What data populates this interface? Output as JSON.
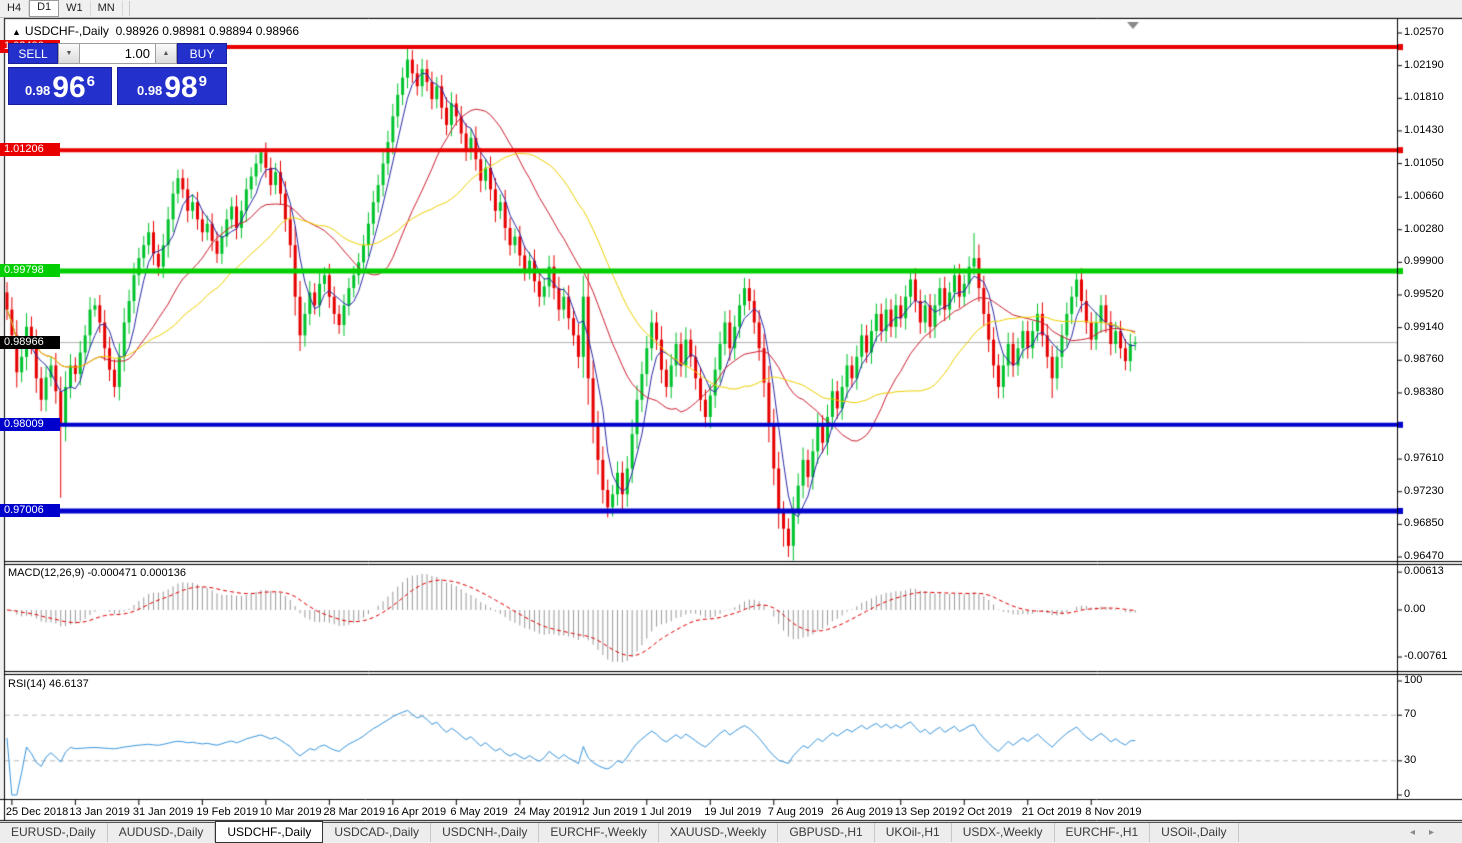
{
  "toolbar": {
    "timeframes": [
      {
        "label": "H4",
        "active": false
      },
      {
        "label": "D1",
        "active": true
      },
      {
        "label": "W1",
        "active": false
      },
      {
        "label": "MN",
        "active": false
      }
    ]
  },
  "header": {
    "collapse_arrow": "▲",
    "symbol_title": "USDCHF-,Daily",
    "ohlc_text": "0.98926 0.98981 0.98894 0.98966"
  },
  "trade_panel": {
    "sell_label": "SELL",
    "buy_label": "BUY",
    "volume": "1.00",
    "spin_down_icon": "▼",
    "spin_up_icon": "▲",
    "sell_price": {
      "prefix": "0.98",
      "big": "96",
      "sup": "6"
    },
    "buy_price": {
      "prefix": "0.98",
      "big": "98",
      "sup": "9"
    },
    "panel_color": "#2330cc"
  },
  "tabs": {
    "items": [
      "EURUSD-,Daily",
      "AUDUSD-,Daily",
      "USDCHF-,Daily",
      "USDCAD-,Daily",
      "USDCNH-,Daily",
      "EURCHF-,Weekly",
      "XAUUSD-,Weekly",
      "GBPUSD-,H1",
      "UKOil-,H1",
      "USDX-,Weekly",
      "EURCHF-,H1",
      "USOil-,Daily"
    ],
    "active_index": 2,
    "scroll_left_icon": "◂",
    "scroll_right_icon": "▸"
  },
  "chart_data": {
    "type": "candlestick",
    "symbol": "USDCHF",
    "timeframe": "Daily",
    "title_ohlc": {
      "open": "0.98926",
      "high": "0.98981",
      "low": "0.98894",
      "close": "0.98966"
    },
    "price_axis_ticks": [
      "1.02570",
      "1.02190",
      "1.01810",
      "1.01430",
      "1.01050",
      "1.00660",
      "1.00280",
      "0.99900",
      "0.99520",
      "0.99140",
      "0.98760",
      "0.98380",
      "0.97610",
      "0.97230",
      "0.96850",
      "0.96470"
    ],
    "levels": [
      {
        "price": 1.02406,
        "label": "1.02406",
        "color": "#e80000",
        "width": 4
      },
      {
        "price": 1.01206,
        "label": "1.01206",
        "color": "#e80000",
        "width": 4
      },
      {
        "price": 0.99798,
        "label": "0.99798",
        "color": "#00ce00",
        "width": 5
      },
      {
        "price": 0.98009,
        "label": "0.98009",
        "color": "#0000cd",
        "width": 4
      },
      {
        "price": 0.97006,
        "label": "0.97006",
        "color": "#0000cd",
        "width": 5
      }
    ],
    "current_price": {
      "value": 0.98966,
      "label": "0.98966",
      "line_color": "#b4b4b4",
      "box_color": "#000000"
    },
    "candle_colors": {
      "up": "#00c32c",
      "down": "#e60000"
    },
    "ma_lines": [
      {
        "period": 5,
        "color": "#2a2aa6"
      },
      {
        "period": 20,
        "color": "#cc2031"
      },
      {
        "period": 34,
        "color": "#efd002"
      }
    ],
    "dates": [
      "25 Dec 2018",
      "13 Jan 2019",
      "31 Jan 2019",
      "19 Feb 2019",
      "10 Mar 2019",
      "28 Mar 2019",
      "16 Apr 2019",
      "6 May 2019",
      "24 May 2019",
      "12 Jun 2019",
      "1 Jul 2019",
      "19 Jul 2019",
      "7 Aug 2019",
      "26 Aug 2019",
      "13 Sep 2019",
      "2 Oct 2019",
      "21 Oct 2019",
      "8 Nov 2019"
    ],
    "closes": [
      0.9935,
      0.9905,
      0.9862,
      0.988,
      0.9915,
      0.9895,
      0.9855,
      0.983,
      0.9856,
      0.987,
      0.984,
      0.98,
      0.9845,
      0.987,
      0.986,
      0.9885,
      0.9905,
      0.9935,
      0.994,
      0.992,
      0.989,
      0.9865,
      0.9845,
      0.988,
      0.992,
      0.9945,
      0.9975,
      0.9995,
      1.001,
      1.0025,
      1.0,
      0.9985,
      1.001,
      1.004,
      1.007,
      1.0088,
      1.0075,
      1.005,
      1.006,
      1.004,
      1.0025,
      1.0035,
      1.0015,
      1.0,
      1.002,
      1.004,
      1.0055,
      1.003,
      1.005,
      1.0075,
      1.009,
      1.0105,
      1.0118,
      1.01,
      1.008,
      1.0095,
      1.007,
      1.004,
      1.001,
      0.995,
      0.9905,
      0.993,
      0.9955,
      0.994,
      0.9965,
      0.9975,
      0.995,
      0.993,
      0.9917,
      0.994,
      0.996,
      0.9975,
      0.999,
      1.001,
      1.0035,
      1.006,
      1.008,
      1.0105,
      1.013,
      1.016,
      1.0185,
      1.0205,
      1.0226,
      1.021,
      1.0195,
      1.0215,
      1.02,
      1.018,
      1.0195,
      1.017,
      1.015,
      1.0175,
      1.016,
      1.014,
      1.012,
      1.0135,
      1.011,
      1.0085,
      1.01,
      1.0075,
      1.005,
      1.006,
      1.003,
      1.001,
      1.002,
      0.9998,
      0.998,
      0.9992,
      0.9968,
      0.995,
      0.9962,
      0.9985,
      0.996,
      0.9935,
      0.995,
      0.9925,
      0.9905,
      0.988,
      0.995,
      0.9855,
      0.98,
      0.976,
      0.9725,
      0.9705,
      0.972,
      0.9745,
      0.972,
      0.975,
      0.979,
      0.983,
      0.986,
      0.989,
      0.992,
      0.99,
      0.9865,
      0.9845,
      0.987,
      0.9895,
      0.987,
      0.99,
      0.988,
      0.9855,
      0.983,
      0.981,
      0.9835,
      0.9865,
      0.9895,
      0.992,
      0.989,
      0.9915,
      0.994,
      0.996,
      0.9945,
      0.992,
      0.989,
      0.985,
      0.98,
      0.975,
      0.97,
      0.968,
      0.966,
      0.97,
      0.973,
      0.976,
      0.974,
      0.977,
      0.98,
      0.978,
      0.981,
      0.984,
      0.982,
      0.9845,
      0.987,
      0.9855,
      0.988,
      0.9905,
      0.9885,
      0.991,
      0.993,
      0.991,
      0.9935,
      0.9915,
      0.994,
      0.9925,
      0.995,
      0.997,
      0.9945,
      0.992,
      0.994,
      0.9915,
      0.994,
      0.996,
      0.9935,
      0.9955,
      0.9975,
      0.995,
      0.9965,
      0.9985,
      0.9995,
      0.996,
      0.993,
      0.99,
      0.987,
      0.9845,
      0.987,
      0.9895,
      0.987,
      0.989,
      0.991,
      0.989,
      0.991,
      0.993,
      0.9905,
      0.988,
      0.9855,
      0.988,
      0.9905,
      0.993,
      0.995,
      0.997,
      0.9945,
      0.992,
      0.99,
      0.992,
      0.994,
      0.992,
      0.9895,
      0.991,
      0.989,
      0.9875,
      0.9895,
      0.98966
    ],
    "wick_overrides": {
      "11": {
        "low": 0.9716
      },
      "35": {
        "high": 1.0098
      },
      "52": {
        "high": 1.0121
      },
      "82": {
        "high": 1.0241
      },
      "123": {
        "low": 0.9693
      },
      "126": {
        "low": 0.9702
      },
      "158": {
        "low": 0.968
      },
      "159": {
        "low": 0.9659
      },
      "160": {
        "low": 0.9647
      },
      "198": {
        "high": 1.0024
      },
      "214": {
        "low": 0.9832
      }
    },
    "macd": {
      "label": "MACD(12,26,9)",
      "values_text": "-0.000471 0.000136",
      "axis_ticks": [
        "0.00613",
        "0.00",
        "-0.00761"
      ],
      "fast": 12,
      "slow": 26,
      "signal": 9,
      "hist_color": "#9a9a9a",
      "signal_color": "#e00000"
    },
    "rsi": {
      "label": "RSI(14)",
      "value_text": "46.6137",
      "axis_ticks": [
        "100",
        "70",
        "30",
        "0"
      ],
      "period": 14,
      "line_color": "#3a96dd",
      "level_lines": [
        70,
        30
      ]
    },
    "shift_marker_color": "#8a8a8a"
  }
}
